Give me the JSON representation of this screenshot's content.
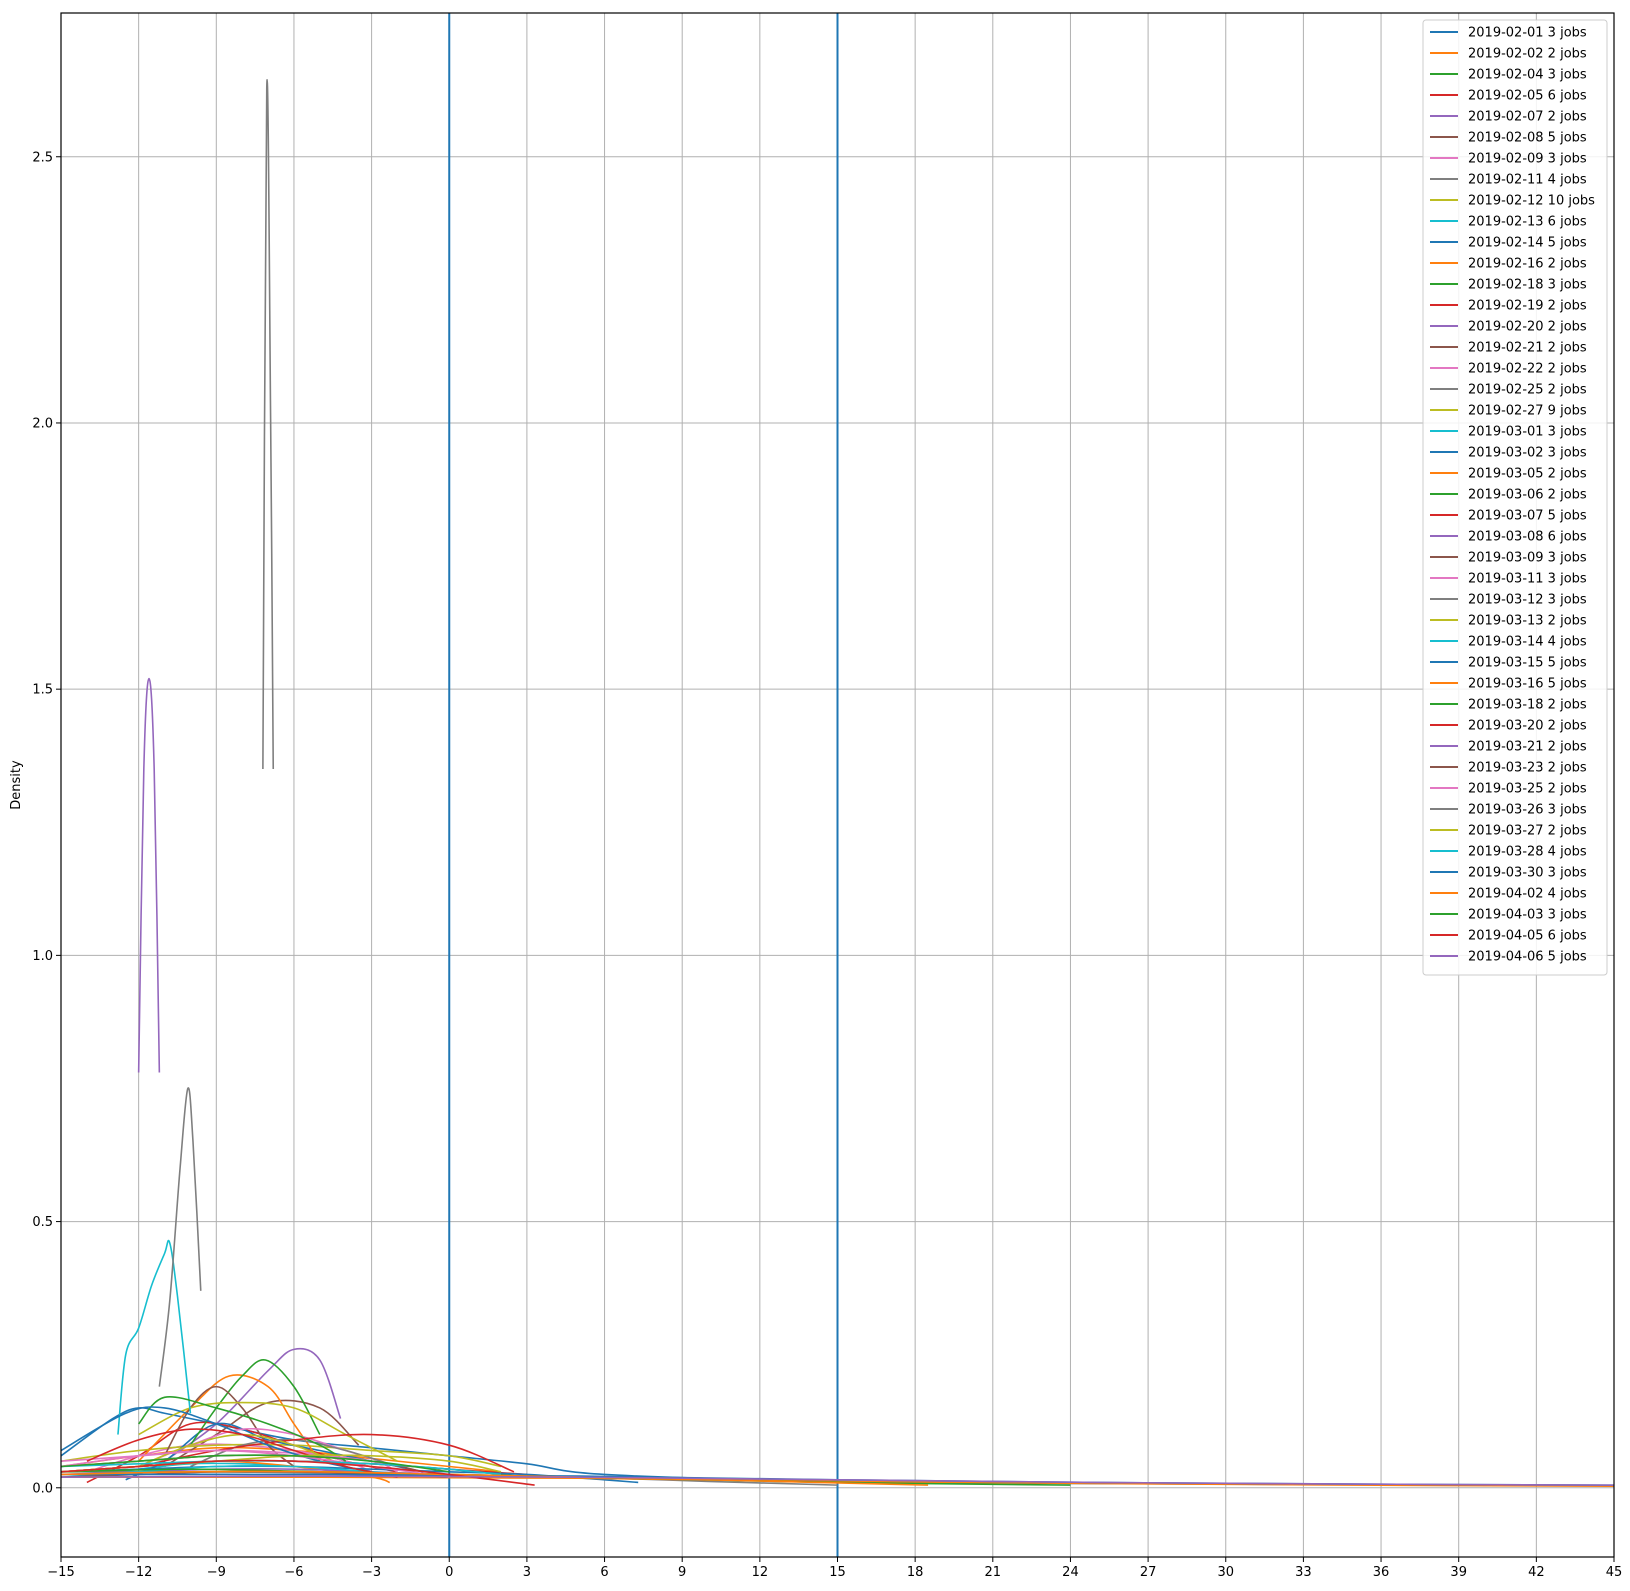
{
  "chart_data": {
    "type": "line",
    "title": "",
    "xlabel": "",
    "ylabel": "Density",
    "xlim": [
      -15,
      45
    ],
    "ylim": [
      -0.13,
      2.77
    ],
    "x_ticks": [
      "−15",
      "−12",
      "−9",
      "−6",
      "−3",
      "0",
      "3",
      "6",
      "9",
      "12",
      "15",
      "18",
      "21",
      "24",
      "27",
      "30",
      "33",
      "36",
      "39",
      "42",
      "45"
    ],
    "y_ticks": [
      "0.0",
      "0.5",
      "1.0",
      "1.5",
      "2.0",
      "2.5"
    ],
    "grid": true,
    "legend_position": "top-right",
    "vertical_lines": [
      {
        "x": 0,
        "color": "#1f77b4"
      },
      {
        "x": 15,
        "color": "#1f77b4"
      }
    ],
    "series": [
      {
        "name": "2019-02-01 3 jobs",
        "color": "#1f77b4",
        "x": [
          -15,
          -13,
          -12,
          -11,
          -9,
          -6,
          -3,
          0,
          3,
          6,
          15,
          25,
          35,
          45
        ],
        "y": [
          0.06,
          0.13,
          0.15,
          0.14,
          0.12,
          0.09,
          0.075,
          0.06,
          0.045,
          0.025,
          0.012,
          0.008,
          0.006,
          0.004
        ]
      },
      {
        "name": "2019-02-02 2 jobs",
        "color": "#ff7f0e",
        "x": [
          -15,
          -12,
          -9,
          -6,
          -3,
          0,
          2
        ],
        "y": [
          0.04,
          0.06,
          0.075,
          0.07,
          0.055,
          0.04,
          0.03
        ]
      },
      {
        "name": "2019-02-04 3 jobs",
        "color": "#2ca02c",
        "x": [
          -15,
          -12,
          -9,
          -6,
          -3,
          0,
          3
        ],
        "y": [
          0.03,
          0.04,
          0.05,
          0.05,
          0.045,
          0.035,
          0.02
        ]
      },
      {
        "name": "2019-02-05 6 jobs",
        "color": "#d62728",
        "x": [
          -14,
          -12,
          -10,
          -8,
          -6,
          -4,
          -2
        ],
        "y": [
          0.01,
          0.06,
          0.12,
          0.11,
          0.08,
          0.05,
          0.03
        ]
      },
      {
        "name": "2019-02-07 2 jobs",
        "color": "#9467bd",
        "x": [
          -11,
          -9,
          -7,
          -6,
          -5,
          -4.2
        ],
        "y": [
          0.05,
          0.12,
          0.22,
          0.26,
          0.24,
          0.13
        ]
      },
      {
        "name": "2019-02-08 5 jobs",
        "color": "#8c564b",
        "x": [
          -11,
          -9,
          -7,
          -5,
          -3.5
        ],
        "y": [
          0.04,
          0.1,
          0.16,
          0.15,
          0.08
        ]
      },
      {
        "name": "2019-02-09 3 jobs",
        "color": "#e377c2",
        "x": [
          -14,
          -12,
          -10,
          -8,
          -6,
          -4,
          -3
        ],
        "y": [
          0.03,
          0.06,
          0.08,
          0.08,
          0.07,
          0.05,
          0.03
        ]
      },
      {
        "name": "2019-02-11 4 jobs",
        "color": "#7f7f7f",
        "x": [
          -7.2,
          -7.05,
          -6.9,
          -6.8
        ],
        "y": [
          1.35,
          2.63,
          2.0,
          1.35
        ]
      },
      {
        "name": "2019-02-12 10 jobs",
        "color": "#bcbd22",
        "x": [
          -15,
          -12,
          -9,
          -6,
          -3,
          0,
          2
        ],
        "y": [
          0.05,
          0.07,
          0.08,
          0.08,
          0.07,
          0.06,
          0.04
        ]
      },
      {
        "name": "2019-02-13 6 jobs",
        "color": "#17becf",
        "x": [
          -14,
          -12,
          -10,
          -8,
          -6,
          -4,
          -2
        ],
        "y": [
          0.02,
          0.035,
          0.045,
          0.045,
          0.04,
          0.03,
          0.02
        ]
      },
      {
        "name": "2019-02-14 5 jobs",
        "color": "#1f77b4",
        "x": [
          -12.5,
          -11,
          -9,
          -7,
          -5,
          -3,
          -1
        ],
        "y": [
          0.015,
          0.05,
          0.12,
          0.09,
          0.07,
          0.05,
          0.03
        ]
      },
      {
        "name": "2019-02-16 2 jobs",
        "color": "#ff7f0e",
        "x": [
          -12,
          -10,
          -8.5,
          -7,
          -6,
          -5
        ],
        "y": [
          0.05,
          0.15,
          0.21,
          0.19,
          0.12,
          0.05
        ]
      },
      {
        "name": "2019-02-18 3 jobs",
        "color": "#2ca02c",
        "x": [
          -10,
          -9,
          -8,
          -7.1,
          -6,
          -5
        ],
        "y": [
          0.08,
          0.15,
          0.21,
          0.24,
          0.19,
          0.1
        ]
      },
      {
        "name": "2019-02-19 2 jobs",
        "color": "#d62728",
        "x": [
          -15,
          -12,
          -9,
          -6,
          -3,
          0,
          3
        ],
        "y": [
          0.03,
          0.04,
          0.05,
          0.05,
          0.045,
          0.035,
          0.025
        ]
      },
      {
        "name": "2019-02-20 2 jobs",
        "color": "#9467bd",
        "x": [
          -15,
          -10,
          -5,
          0,
          5
        ],
        "y": [
          0.02,
          0.02,
          0.02,
          0.02,
          0.02
        ]
      },
      {
        "name": "2019-02-21 2 jobs",
        "color": "#8c564b",
        "x": [
          -11,
          -10,
          -9,
          -8,
          -7,
          -6
        ],
        "y": [
          0.06,
          0.15,
          0.19,
          0.15,
          0.08,
          0.04
        ]
      },
      {
        "name": "2019-02-22 2 jobs",
        "color": "#e377c2",
        "x": [
          -12,
          -10,
          -8,
          -6,
          -4,
          -2
        ],
        "y": [
          0.04,
          0.08,
          0.11,
          0.1,
          0.07,
          0.04
        ]
      },
      {
        "name": "2019-02-25 2 jobs",
        "color": "#7f7f7f",
        "x": [
          -10,
          -8,
          -6,
          -4,
          -2
        ],
        "y": [
          0.04,
          0.08,
          0.09,
          0.07,
          0.04
        ]
      },
      {
        "name": "2019-02-27 9 jobs",
        "color": "#bcbd22",
        "x": [
          -12,
          -10,
          -8,
          -6,
          -4,
          -2
        ],
        "y": [
          0.1,
          0.15,
          0.16,
          0.15,
          0.1,
          0.05
        ]
      },
      {
        "name": "2019-03-01 3 jobs",
        "color": "#17becf",
        "x": [
          -12.8,
          -12.5,
          -12,
          -11.5,
          -11,
          -10.8,
          -10.5,
          -10
        ],
        "y": [
          0.1,
          0.25,
          0.3,
          0.38,
          0.44,
          0.46,
          0.36,
          0.14
        ]
      },
      {
        "name": "2019-03-02 3 jobs",
        "color": "#1f77b4",
        "x": [
          -15,
          -12,
          -9,
          -6,
          -3,
          0,
          3,
          6,
          7.3
        ],
        "y": [
          0.03,
          0.035,
          0.04,
          0.04,
          0.035,
          0.03,
          0.025,
          0.015,
          0.01
        ]
      },
      {
        "name": "2019-03-05 2 jobs",
        "color": "#ff7f0e",
        "x": [
          -15,
          -12,
          -9,
          -6,
          -3,
          -2.3
        ],
        "y": [
          0.03,
          0.04,
          0.05,
          0.04,
          0.02,
          0.01
        ]
      },
      {
        "name": "2019-03-06 2 jobs",
        "color": "#2ca02c",
        "x": [
          -12,
          -11,
          -9,
          -7,
          -5,
          -4
        ],
        "y": [
          0.12,
          0.17,
          0.15,
          0.12,
          0.08,
          0.05
        ]
      },
      {
        "name": "2019-03-07 5 jobs",
        "color": "#d62728",
        "x": [
          -12,
          -9,
          -6,
          -3,
          0,
          2.5
        ],
        "y": [
          0.04,
          0.07,
          0.09,
          0.1,
          0.08,
          0.03
        ]
      },
      {
        "name": "2019-03-08 6 jobs",
        "color": "#9467bd",
        "x": [
          -15,
          -12,
          -9,
          -6,
          -3,
          0,
          3
        ],
        "y": [
          0.025,
          0.03,
          0.035,
          0.035,
          0.03,
          0.025,
          0.02
        ]
      },
      {
        "name": "2019-03-09 3 jobs",
        "color": "#8c564b",
        "x": [
          -15,
          -12,
          -9,
          -6,
          -3,
          -1
        ],
        "y": [
          0.04,
          0.05,
          0.06,
          0.06,
          0.05,
          0.03
        ]
      },
      {
        "name": "2019-03-11 3 jobs",
        "color": "#e377c2",
        "x": [
          -15,
          -12,
          -9,
          -6,
          -3,
          -2
        ],
        "y": [
          0.05,
          0.06,
          0.07,
          0.065,
          0.05,
          0.03
        ]
      },
      {
        "name": "2019-03-12 3 jobs",
        "color": "#7f7f7f",
        "x": [
          -15,
          -10,
          -5,
          0,
          5,
          10,
          15
        ],
        "y": [
          0.03,
          0.03,
          0.028,
          0.025,
          0.02,
          0.012,
          0.005
        ]
      },
      {
        "name": "2019-03-13 2 jobs",
        "color": "#bcbd22",
        "x": [
          -12,
          -10,
          -8,
          -6,
          -4
        ],
        "y": [
          0.04,
          0.08,
          0.1,
          0.08,
          0.04
        ]
      },
      {
        "name": "2019-03-14 4 jobs",
        "color": "#17becf",
        "x": [
          -15,
          -12,
          -9,
          -6,
          -3,
          0
        ],
        "y": [
          0.02,
          0.03,
          0.04,
          0.04,
          0.03,
          0.02
        ]
      },
      {
        "name": "2019-03-15 5 jobs",
        "color": "#1f77b4",
        "x": [
          -15,
          -12.5,
          -11,
          -9,
          -7,
          -5,
          -3
        ],
        "y": [
          0.07,
          0.14,
          0.15,
          0.12,
          0.08,
          0.05,
          0.03
        ]
      },
      {
        "name": "2019-03-16 5 jobs",
        "color": "#ff7f0e",
        "x": [
          -15,
          -5,
          5,
          15,
          25,
          35,
          45
        ],
        "y": [
          0.02,
          0.02,
          0.018,
          0.012,
          0.008,
          0.005,
          0.003
        ]
      },
      {
        "name": "2019-03-18 2 jobs",
        "color": "#2ca02c",
        "x": [
          -15,
          -10,
          -5,
          0,
          5,
          15,
          24
        ],
        "y": [
          0.03,
          0.035,
          0.03,
          0.025,
          0.02,
          0.01,
          0.005
        ]
      },
      {
        "name": "2019-03-20 2 jobs",
        "color": "#d62728",
        "x": [
          -14,
          -12,
          -10,
          -8,
          -6,
          -4,
          -2
        ],
        "y": [
          0.05,
          0.09,
          0.11,
          0.1,
          0.07,
          0.04,
          0.02
        ]
      },
      {
        "name": "2019-03-21 2 jobs",
        "color": "#9467bd",
        "x": [
          -12,
          -11.8,
          -11.6,
          -11.4,
          -11.2
        ],
        "y": [
          0.78,
          1.35,
          1.52,
          1.35,
          0.78
        ]
      },
      {
        "name": "2019-03-23 2 jobs",
        "color": "#8c564b",
        "x": [
          -15,
          -12,
          -9,
          -6,
          -3,
          0
        ],
        "y": [
          0.02,
          0.025,
          0.03,
          0.03,
          0.025,
          0.02
        ]
      },
      {
        "name": "2019-03-25 2 jobs",
        "color": "#e377c2",
        "x": [
          -15,
          -12,
          -9,
          -6,
          -3,
          0
        ],
        "y": [
          0.04,
          0.06,
          0.07,
          0.06,
          0.04,
          0.02
        ]
      },
      {
        "name": "2019-03-26 3 jobs",
        "color": "#7f7f7f",
        "x": [
          -11.2,
          -10.8,
          -10.4,
          -10.1,
          -9.9,
          -9.6
        ],
        "y": [
          0.19,
          0.35,
          0.6,
          0.75,
          0.65,
          0.37
        ]
      },
      {
        "name": "2019-03-27 2 jobs",
        "color": "#bcbd22",
        "x": [
          -15,
          -12,
          -9,
          -6,
          -3,
          0,
          2
        ],
        "y": [
          0.03,
          0.04,
          0.05,
          0.06,
          0.06,
          0.05,
          0.03
        ]
      },
      {
        "name": "2019-03-28 4 jobs",
        "color": "#17becf",
        "x": [
          -15,
          -12,
          -9,
          -6,
          -3,
          0,
          2
        ],
        "y": [
          0.04,
          0.045,
          0.05,
          0.05,
          0.045,
          0.035,
          0.025
        ]
      },
      {
        "name": "2019-03-30 3 jobs",
        "color": "#1f77b4",
        "x": [
          -15,
          -5,
          5,
          15,
          25,
          35,
          45
        ],
        "y": [
          0.025,
          0.025,
          0.022,
          0.015,
          0.01,
          0.007,
          0.005
        ]
      },
      {
        "name": "2019-04-02 4 jobs",
        "color": "#ff7f0e",
        "x": [
          -15,
          -10,
          -5,
          0,
          5,
          10,
          18.5
        ],
        "y": [
          0.025,
          0.03,
          0.03,
          0.025,
          0.02,
          0.015,
          0.005
        ]
      },
      {
        "name": "2019-04-03 3 jobs",
        "color": "#2ca02c",
        "x": [
          -15,
          -12,
          -9,
          -6,
          -3,
          0
        ],
        "y": [
          0.04,
          0.05,
          0.06,
          0.06,
          0.05,
          0.03
        ]
      },
      {
        "name": "2019-04-05 6 jobs",
        "color": "#d62728",
        "x": [
          -15,
          -12,
          -9,
          -6,
          -3,
          0,
          3.3
        ],
        "y": [
          0.03,
          0.04,
          0.05,
          0.05,
          0.04,
          0.025,
          0.005
        ]
      },
      {
        "name": "2019-04-06 5 jobs",
        "color": "#9467bd",
        "x": [
          -15,
          -5,
          5,
          15,
          25,
          35,
          45
        ],
        "y": [
          0.02,
          0.022,
          0.02,
          0.015,
          0.01,
          0.007,
          0.005
        ]
      }
    ]
  }
}
